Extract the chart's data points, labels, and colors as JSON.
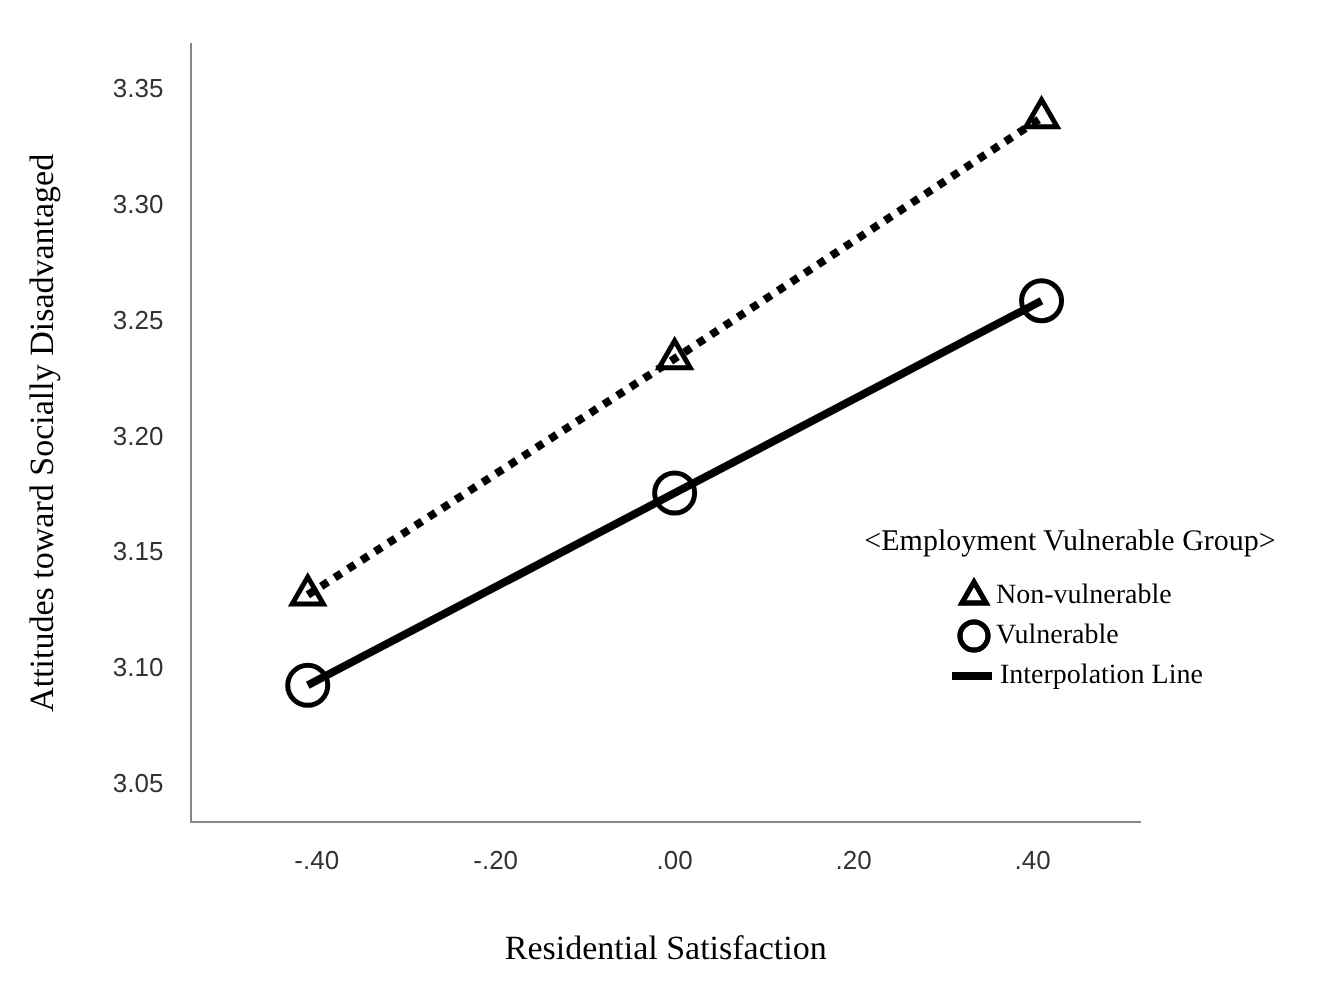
{
  "chart_data": {
    "type": "line",
    "xlabel": "Residential Satisfaction",
    "ylabel": "Attitudes toward Socially Disadvantaged",
    "legend_title": "<Employment Vulnerable Group>",
    "legend": "right",
    "grid": false,
    "annotations": [
      "Interpolation Line"
    ],
    "xlim": [
      -0.54,
      0.52
    ],
    "xticks": [
      {
        "value": -0.4,
        "label": "-.40"
      },
      {
        "value": -0.2,
        "label": "-.20"
      },
      {
        "value": 0,
        "label": ".00"
      },
      {
        "value": 0.2,
        "label": ".20"
      },
      {
        "value": 0.4,
        "label": ".40"
      }
    ],
    "ylim": [
      3.034,
      3.37
    ],
    "yticks": [
      {
        "value": 3.05,
        "label": "3.05"
      },
      {
        "value": 3.1,
        "label": "3.10"
      },
      {
        "value": 3.15,
        "label": "3.15"
      },
      {
        "value": 3.2,
        "label": "3.20"
      },
      {
        "value": 3.25,
        "label": "3.25"
      },
      {
        "value": 3.3,
        "label": "3.30"
      },
      {
        "value": 3.35,
        "label": "3.35"
      }
    ],
    "series": [
      {
        "name": "Non-vulnerable",
        "color": "#000000",
        "marker": "triangle",
        "line_style": "dotted",
        "x": [
          -0.41,
          0,
          0.41
        ],
        "values": [
          3.132,
          3.234,
          3.338
        ]
      },
      {
        "name": "Vulnerable",
        "color": "#000000",
        "marker": "circle",
        "line_style": "solid",
        "x": [
          -0.41,
          0,
          0.41
        ],
        "values": [
          3.093,
          3.176,
          3.259
        ]
      }
    ]
  }
}
